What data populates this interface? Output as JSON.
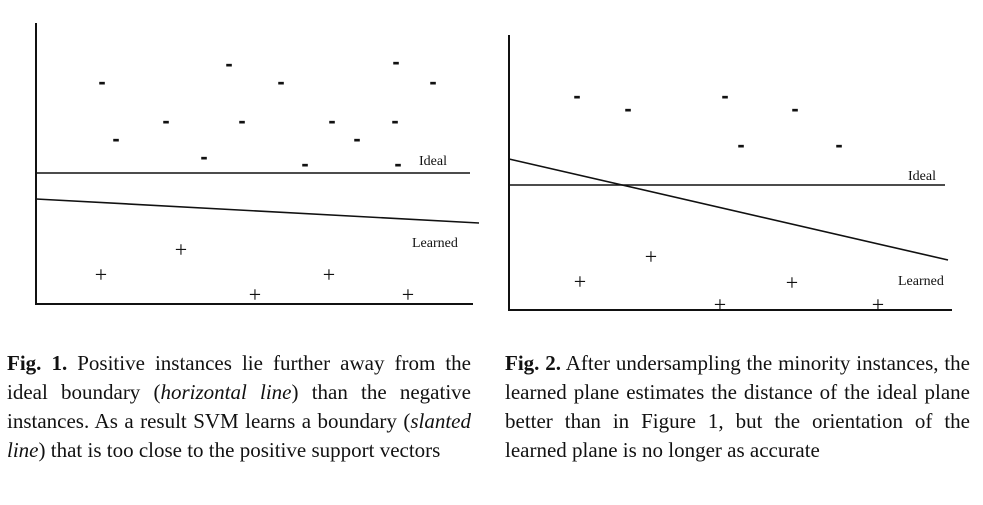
{
  "figures": [
    {
      "ideal_label": "Ideal",
      "learned_label": "Learned",
      "negative_symbol": "-",
      "positive_symbol": "+",
      "caption": {
        "label": "Fig. 1.",
        "t1": " Positive instances lie further away from the ideal boundary (",
        "i1": "horizontal line",
        "t2": ") than the negative instances. As a result SVM learns a boundary (",
        "i2": "slanted line",
        "t3": ") that is too close to the positive support vectors"
      }
    },
    {
      "ideal_label": "Ideal",
      "learned_label": "Learned",
      "negative_symbol": "-",
      "positive_symbol": "+",
      "caption": {
        "label": "Fig. 2.",
        "t1": " After undersampling the minority instances, the learned plane estimates the distance of the ideal plane better than in Figure 1, but the orientation of the learned plane is no longer as accurate"
      }
    }
  ]
}
